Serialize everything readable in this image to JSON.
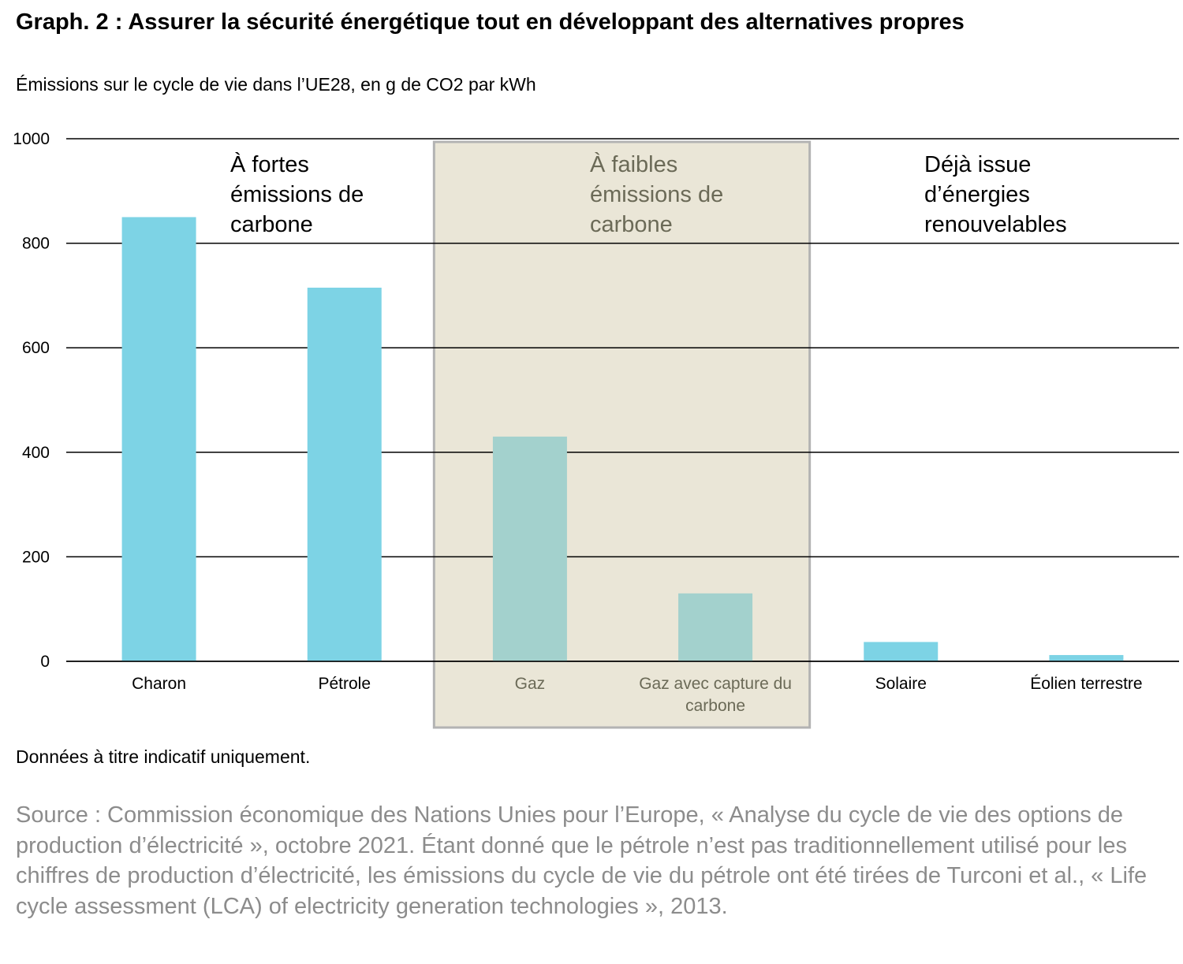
{
  "title": "Graph. 2 : Assurer la sécurité énergétique tout en développant des alternatives propres",
  "subtitle": "Émissions sur le cycle de vie dans l’UE28, en g de CO2 par kWh",
  "note": "Données à titre indicatif uniquement.",
  "source": "Source : Commission économique des Nations Unies pour l’Europe, « Analyse du cycle de vie des options de production d’électricité », octobre 2021. Étant donné que le pétrole n’est pas traditionnellement utilisé pour les chiffres de production d’électricité, les émissions du cycle de vie du pétrole ont été tirées de Turconi et al., « Life cycle assessment (LCA) of electricity generation technologies », 2013.",
  "colors": {
    "bar_main": "#7dd3e5",
    "bar_highlight": "#a3d1cd",
    "highlight_box_fill": "#eae6d7",
    "highlight_box_border": "#b3b3b3",
    "highlight_text": "#6b6a57",
    "gridline": "#000000"
  },
  "chart_data": {
    "type": "bar",
    "ylim": [
      0,
      1000
    ],
    "yticks": [
      "0",
      "200",
      "400",
      "600",
      "800",
      "1000"
    ],
    "grid": true,
    "categories": [
      "Charon",
      "Pétrole",
      "Gaz",
      "Gaz avec capture du carbone",
      "Solaire",
      "Éolien terrestre"
    ],
    "values": [
      850,
      715,
      430,
      130,
      37,
      12
    ],
    "highlighted": [
      false,
      false,
      true,
      true,
      false,
      false
    ],
    "groups": [
      "À fortes\némissions de\ncarbone",
      "À faibles\némissions de\ncarbone",
      "Déjà issue\nd’énergies\nrenouvelables"
    ]
  }
}
